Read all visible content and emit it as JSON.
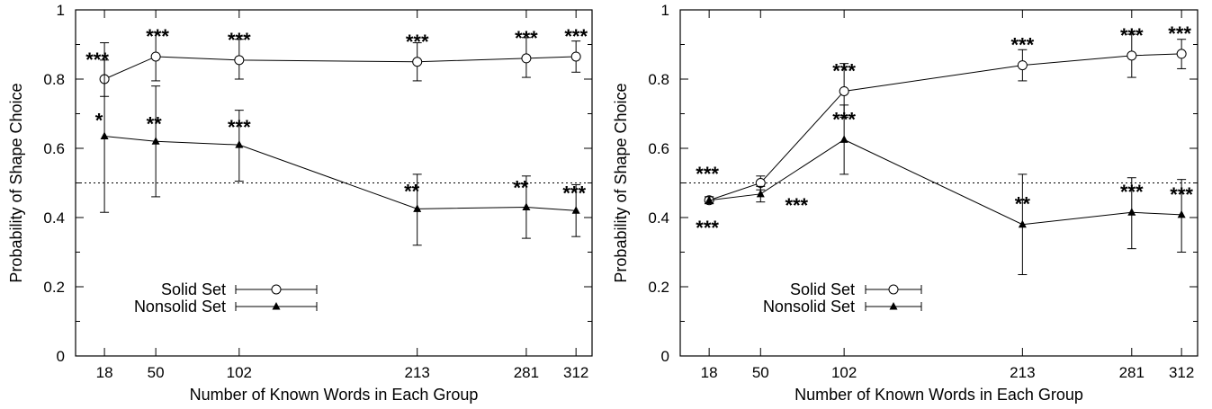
{
  "chart_data": [
    {
      "type": "line",
      "xlabel": "Number of Known Words in Each Group",
      "ylabel": "Probability of Shape Choice",
      "x": [
        18,
        50,
        102,
        213,
        281,
        312
      ],
      "xtick_labels": [
        "18",
        "50",
        "102",
        "213",
        "281",
        "312"
      ],
      "xlim": [
        0,
        322
      ],
      "ylim": [
        0,
        1
      ],
      "yticks": [
        "0",
        "0.2",
        "0.4",
        "0.6",
        "0.8",
        "1"
      ],
      "reference_line": 0.5,
      "legend": "bottom-left",
      "series": [
        {
          "name": "Solid Set",
          "marker": "open-circle",
          "values": [
            0.8,
            0.865,
            0.855,
            0.85,
            0.86,
            0.865
          ],
          "err_low": [
            0.75,
            0.795,
            0.8,
            0.795,
            0.805,
            0.82
          ],
          "err_high": [
            0.905,
            0.935,
            0.915,
            0.905,
            0.92,
            0.91
          ],
          "significance": [
            "***",
            "***",
            "***",
            "***",
            "***",
            "***"
          ]
        },
        {
          "name": "Nonsolid Set",
          "marker": "filled-triangle",
          "values": [
            0.635,
            0.62,
            0.61,
            0.425,
            0.43,
            0.42
          ],
          "err_low": [
            0.415,
            0.46,
            0.505,
            0.32,
            0.34,
            0.345
          ],
          "err_high": [
            0.855,
            0.78,
            0.71,
            0.525,
            0.52,
            0.495
          ],
          "significance": [
            "*",
            "**",
            "***",
            "**",
            "**",
            "***"
          ]
        }
      ]
    },
    {
      "type": "line",
      "xlabel": "Number of Known Words in Each Group",
      "ylabel": "Probability of Shape Choice",
      "x": [
        18,
        50,
        102,
        213,
        281,
        312
      ],
      "xtick_labels": [
        "18",
        "50",
        "102",
        "213",
        "281",
        "312"
      ],
      "xlim": [
        0,
        322
      ],
      "ylim": [
        0,
        1
      ],
      "yticks": [
        "0",
        "0.2",
        "0.4",
        "0.6",
        "0.8",
        "1"
      ],
      "reference_line": 0.5,
      "legend": "bottom-left",
      "series": [
        {
          "name": "Solid Set",
          "marker": "open-circle",
          "values": [
            0.45,
            0.5,
            0.765,
            0.84,
            0.868,
            0.873
          ],
          "err_low": [
            0.44,
            0.48,
            0.69,
            0.795,
            0.805,
            0.83
          ],
          "err_high": [
            0.46,
            0.52,
            0.845,
            0.885,
            0.93,
            0.915
          ],
          "significance": [
            "***",
            "",
            "***",
            "***",
            "***",
            "***"
          ]
        },
        {
          "name": "Nonsolid Set",
          "marker": "filled-triangle",
          "values": [
            0.45,
            0.468,
            0.625,
            0.38,
            0.415,
            0.408
          ],
          "err_low": [
            0.44,
            0.445,
            0.525,
            0.235,
            0.31,
            0.3
          ],
          "err_high": [
            0.46,
            0.49,
            0.725,
            0.525,
            0.515,
            0.51
          ],
          "significance": [
            "***",
            "***",
            "***",
            "**",
            "***",
            "***"
          ]
        }
      ]
    }
  ]
}
